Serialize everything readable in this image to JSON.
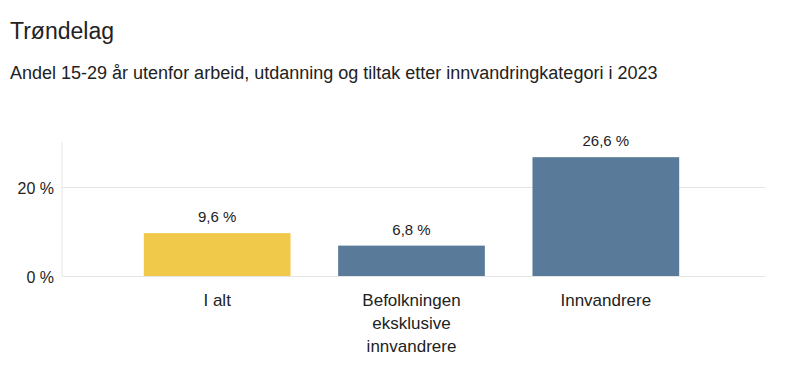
{
  "chart_data": {
    "type": "bar",
    "title": "Trøndelag",
    "subtitle": "Andel 15-29 år utenfor arbeid, utdanning og tiltak etter innvandringkategori i 2023",
    "categories": [
      "I alt",
      "Befolkningen eksklusive innvandrere",
      "Innvandrere"
    ],
    "values": [
      9.6,
      6.8,
      26.6
    ],
    "value_labels": [
      "9,6 %",
      "6,8 %",
      "26,6 %"
    ],
    "colors": [
      "#f0c84a",
      "#5a7a99",
      "#5a7a99"
    ],
    "ylim": [
      0,
      30
    ],
    "yticks": [
      {
        "value": 0,
        "label": "0 %"
      },
      {
        "value": 20,
        "label": "20 %"
      }
    ],
    "grid": true,
    "data_labels": true
  }
}
